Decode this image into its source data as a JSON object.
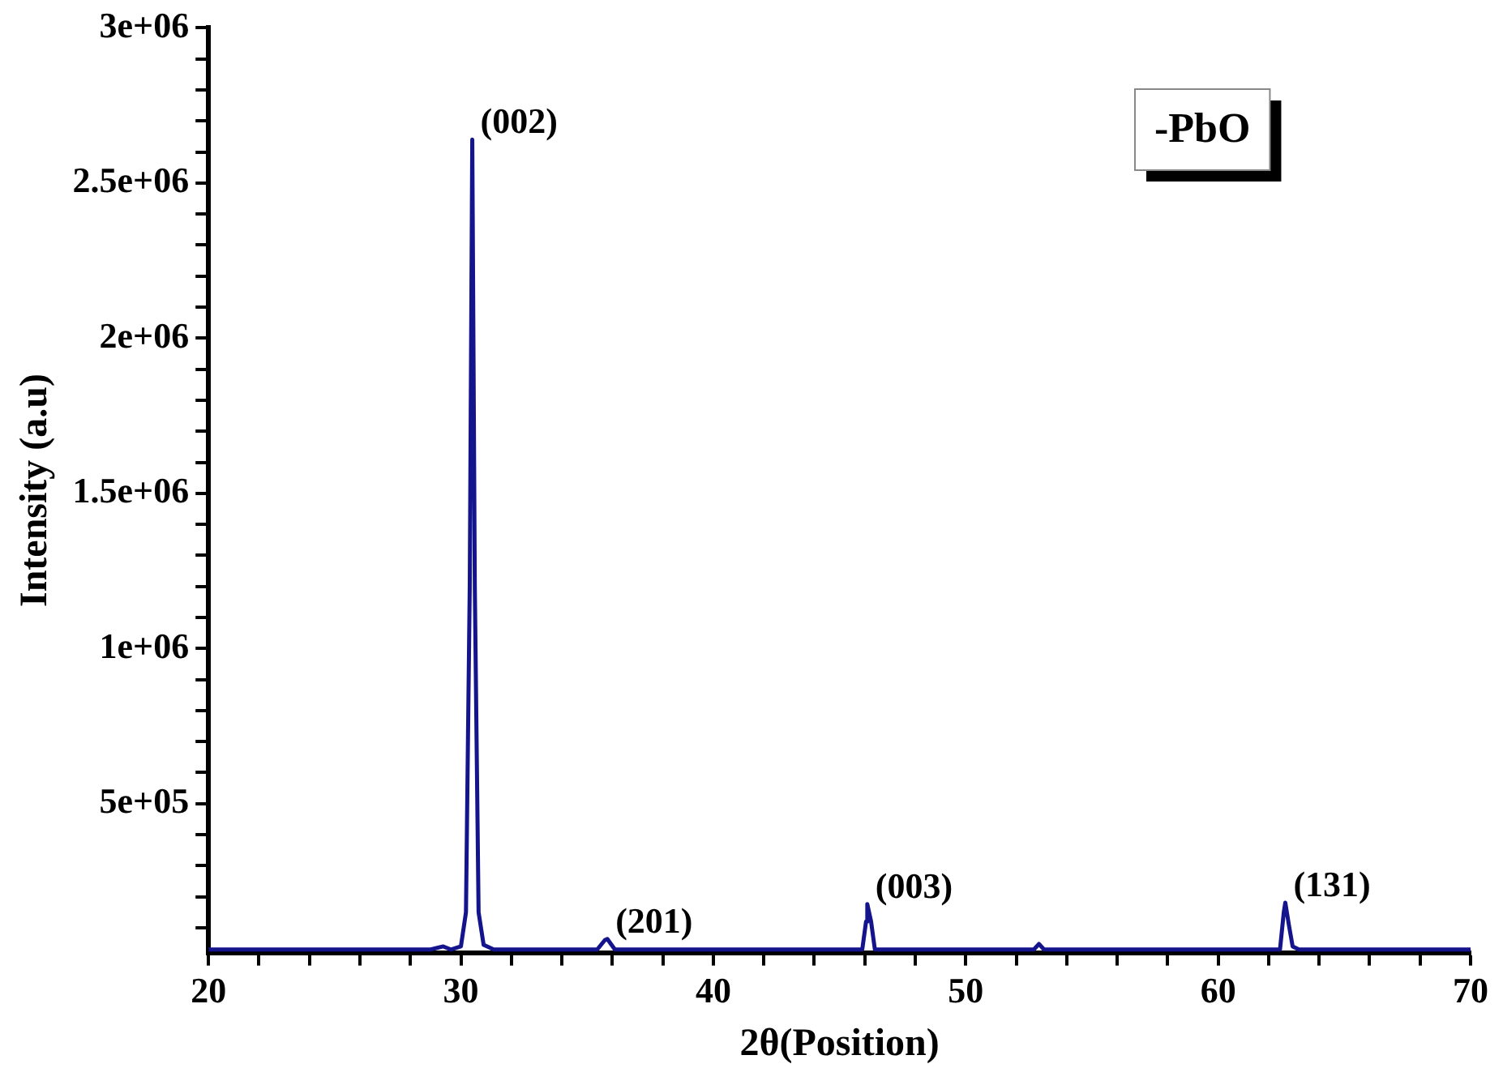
{
  "chart_data": {
    "type": "line",
    "xlabel": "2θ(Position)",
    "ylabel": "Intensity (a.u)",
    "color": "#14148c",
    "marker": "none",
    "legend": false,
    "grid": false,
    "x": [
      20,
      28.8,
      29.3,
      29.6,
      30.0,
      30.2,
      30.35,
      30.45,
      30.55,
      30.7,
      30.9,
      31.3,
      35.4,
      35.7,
      35.8,
      36.1,
      45.9,
      46.05,
      46.1,
      46.25,
      46.4,
      52.7,
      52.9,
      53.1,
      62.45,
      62.6,
      62.66,
      62.8,
      62.95,
      63.2,
      70
    ],
    "values": [
      30000,
      30000,
      40000,
      30000,
      40000,
      150000,
      1200000,
      2640000,
      1200000,
      150000,
      45000,
      30000,
      30000,
      60000,
      64000,
      30000,
      30000,
      120000,
      176000,
      120000,
      30000,
      30000,
      48000,
      30000,
      30000,
      150000,
      181000,
      110000,
      40000,
      30000,
      30000
    ],
    "xlim": [
      20,
      70
    ],
    "xticks": [
      20,
      {
        "value": 22,
        "label": null
      },
      {
        "value": 24,
        "label": null
      },
      {
        "value": 26,
        "label": null
      },
      {
        "value": 28,
        "label": null
      },
      30,
      {
        "value": 32,
        "label": null
      },
      {
        "value": 34,
        "label": null
      },
      {
        "value": 36,
        "label": null
      },
      {
        "value": 38,
        "label": null
      },
      40,
      {
        "value": 42,
        "label": null
      },
      {
        "value": 44,
        "label": null
      },
      {
        "value": 46,
        "label": null
      },
      {
        "value": 48,
        "label": null
      },
      50,
      {
        "value": 52,
        "label": null
      },
      {
        "value": 54,
        "label": null
      },
      {
        "value": 56,
        "label": null
      },
      {
        "value": 58,
        "label": null
      },
      60,
      {
        "value": 62,
        "label": null
      },
      {
        "value": 64,
        "label": null
      },
      {
        "value": 66,
        "label": null
      },
      {
        "value": 68,
        "label": null
      },
      70
    ],
    "ylim": [
      20000,
      3000000
    ],
    "yticks": [
      {
        "value": 100000,
        "label": null
      },
      {
        "value": 200000,
        "label": null
      },
      {
        "value": 300000,
        "label": null
      },
      {
        "value": 400000,
        "label": null
      },
      {
        "value": 500000,
        "label": "5e+05"
      },
      {
        "value": 600000,
        "label": null
      },
      {
        "value": 700000,
        "label": null
      },
      {
        "value": 800000,
        "label": null
      },
      {
        "value": 900000,
        "label": null
      },
      {
        "value": 1000000,
        "label": "1e+06"
      },
      {
        "value": 1100000,
        "label": null
      },
      {
        "value": 1200000,
        "label": null
      },
      {
        "value": 1300000,
        "label": null
      },
      {
        "value": 1400000,
        "label": null
      },
      {
        "value": 1500000,
        "label": "1.5e+06"
      },
      {
        "value": 1600000,
        "label": null
      },
      {
        "value": 1700000,
        "label": null
      },
      {
        "value": 1800000,
        "label": null
      },
      {
        "value": 1900000,
        "label": null
      },
      {
        "value": 2000000,
        "label": "2e+06"
      },
      {
        "value": 2100000,
        "label": null
      },
      {
        "value": 2200000,
        "label": null
      },
      {
        "value": 2300000,
        "label": null
      },
      {
        "value": 2400000,
        "label": null
      },
      {
        "value": 2500000,
        "label": "2.5e+06"
      },
      {
        "value": 2600000,
        "label": null
      },
      {
        "value": 2700000,
        "label": null
      },
      {
        "value": 2800000,
        "label": null
      },
      {
        "value": 2900000,
        "label": null
      },
      {
        "value": 3000000,
        "label": "3e+06"
      }
    ],
    "annotations": [
      {
        "text": "(002)",
        "x": 30.45,
        "y": 2640000
      },
      {
        "text": "(201)",
        "x": 35.8,
        "y": 64000
      },
      {
        "text": "(003)",
        "x": 46.1,
        "y": 176000
      },
      {
        "text": "(131)",
        "x": 62.66,
        "y": 181000
      },
      "-PbO"
    ]
  }
}
